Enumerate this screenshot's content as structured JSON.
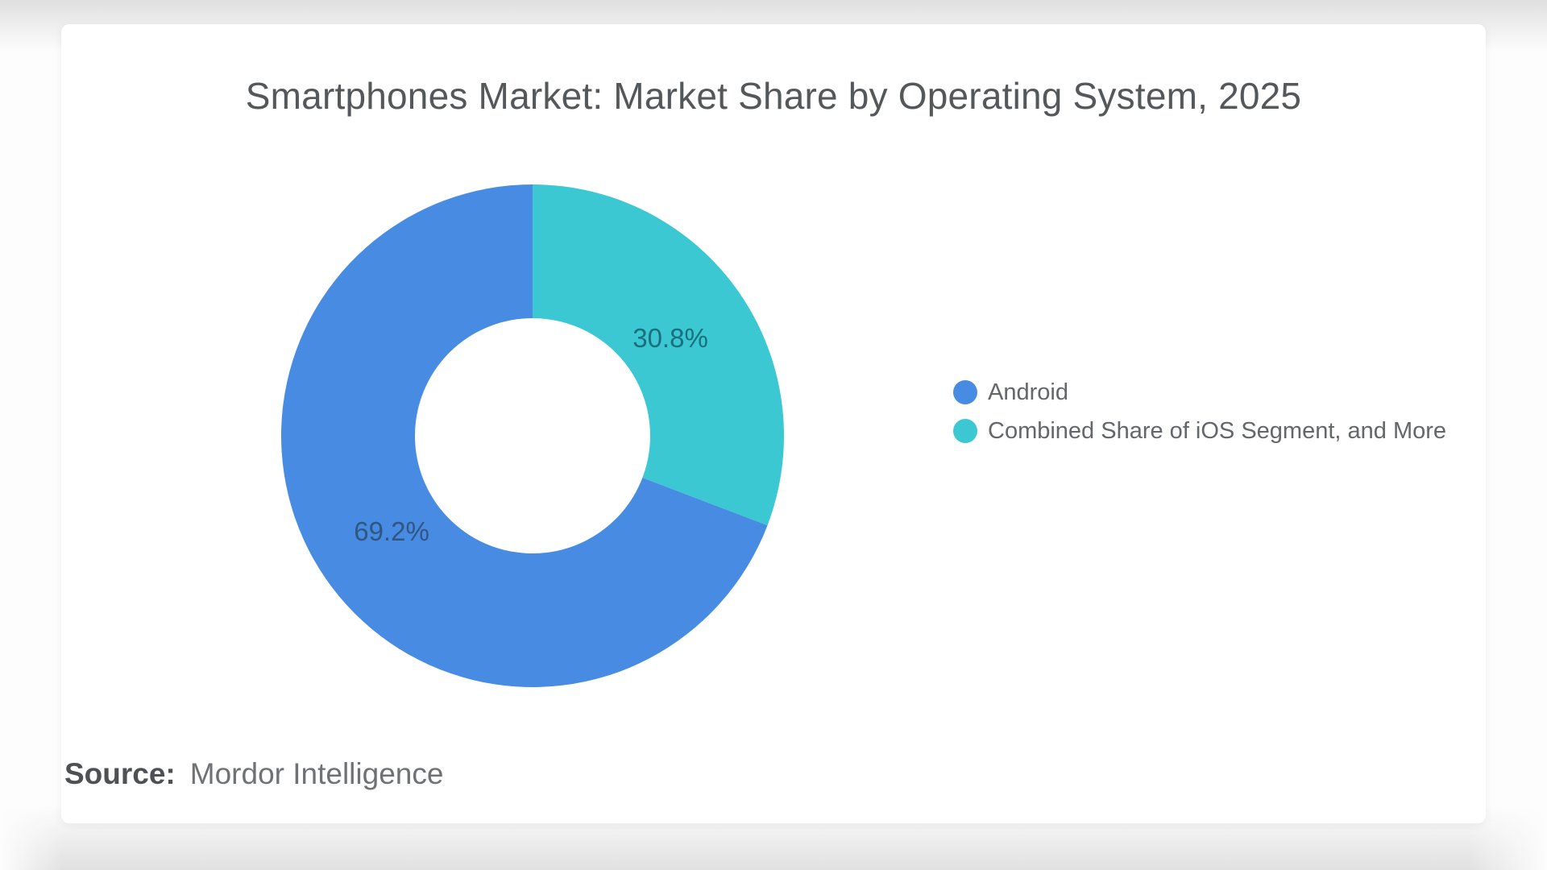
{
  "chart_data": {
    "type": "pie",
    "subtype": "donut",
    "title": "Smartphones Market: Market Share by Operating System, 2025",
    "series": [
      {
        "name": "Android",
        "value": 69.2,
        "label": "69.2%",
        "color": "#478BE2",
        "label_color": "#315680"
      },
      {
        "name": "Combined Share of iOS Segment, and More",
        "value": 30.8,
        "label": "30.8%",
        "color": "#3CC8D2",
        "label_color": "#1A6F7D"
      }
    ],
    "layout": {
      "start": "top",
      "clockwise_order": [
        "Combined Share of iOS Segment, and More",
        "Android"
      ],
      "inner_radius_ratio": 0.468,
      "legend_position": "right",
      "grid": "off"
    },
    "source": {
      "prefix": "Source:",
      "text": "Mordor Intelligence"
    }
  },
  "page": {
    "background_color": "#ffffff",
    "top_band_color": "#e3e3e3",
    "bottom_band_color": "#e2e2e2"
  }
}
